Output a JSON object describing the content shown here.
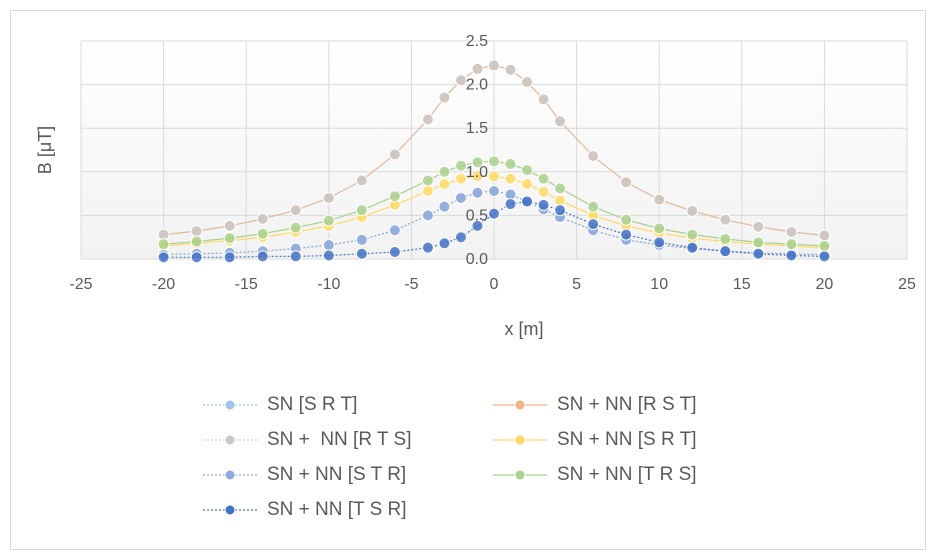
{
  "colors": {
    "gridline": "#d9d9d9",
    "plot_band_light": "#f2f2f2",
    "text": "#595959",
    "axis": "#bfbfbf"
  },
  "chart_data": {
    "type": "scatter",
    "title": "",
    "xlabel": "x [m]",
    "ylabel": "B [μT]",
    "xlim": [
      -25,
      25
    ],
    "ylim": [
      0,
      2.5
    ],
    "x_ticks": [
      "-25",
      "-20",
      "-15",
      "-10",
      "-5",
      "0",
      "5",
      "10",
      "15",
      "20",
      "25"
    ],
    "y_ticks": [
      "0.0",
      "0.5",
      "1.0",
      "1.5",
      "2.0",
      "2.5"
    ],
    "grid": true,
    "legend_position": "bottom",
    "series": [
      {
        "name": "SN [S R T]",
        "color": "#9dc3e6",
        "line_style": "dotted",
        "x": [
          -20,
          -18,
          -16,
          -14,
          -12,
          -10,
          -8,
          -6,
          -4,
          -3,
          -2,
          -1,
          0,
          1,
          2,
          3,
          4,
          6,
          8,
          10,
          12,
          14,
          16,
          18,
          20
        ],
        "y": [
          0.05,
          0.06,
          0.07,
          0.09,
          0.12,
          0.16,
          0.22,
          0.33,
          0.5,
          0.6,
          0.7,
          0.76,
          0.78,
          0.74,
          0.66,
          0.57,
          0.48,
          0.33,
          0.22,
          0.16,
          0.12,
          0.09,
          0.07,
          0.06,
          0.05
        ]
      },
      {
        "name": "SN + NN [R S T]",
        "color": "#f4b183",
        "line_style": "solid",
        "x": [
          -20,
          -18,
          -16,
          -14,
          -12,
          -10,
          -8,
          -6,
          -4,
          -3,
          -2,
          -1,
          0,
          1,
          2,
          3,
          4,
          6,
          8,
          10,
          12,
          14,
          16,
          18,
          20
        ],
        "y": [
          0.28,
          0.32,
          0.38,
          0.46,
          0.56,
          0.7,
          0.9,
          1.2,
          1.6,
          1.85,
          2.05,
          2.18,
          2.22,
          2.17,
          2.03,
          1.83,
          1.58,
          1.18,
          0.88,
          0.68,
          0.55,
          0.45,
          0.37,
          0.31,
          0.27
        ]
      },
      {
        "name": "SN +  NN [R T S]",
        "color": "#c9c9c9",
        "line_style": "dotted",
        "x": [
          -20,
          -18,
          -16,
          -14,
          -12,
          -10,
          -8,
          -6,
          -4,
          -3,
          -2,
          -1,
          0,
          1,
          2,
          3,
          4,
          6,
          8,
          10,
          12,
          14,
          16,
          18,
          20
        ],
        "y": [
          0.28,
          0.32,
          0.38,
          0.46,
          0.56,
          0.7,
          0.9,
          1.2,
          1.6,
          1.85,
          2.05,
          2.18,
          2.22,
          2.17,
          2.03,
          1.83,
          1.58,
          1.18,
          0.88,
          0.68,
          0.55,
          0.45,
          0.37,
          0.31,
          0.27
        ]
      },
      {
        "name": "SN + NN [S R T]",
        "color": "#ffd966",
        "line_style": "solid",
        "x": [
          -20,
          -18,
          -16,
          -14,
          -12,
          -10,
          -8,
          -6,
          -4,
          -3,
          -2,
          -1,
          0,
          1,
          2,
          3,
          4,
          6,
          8,
          10,
          12,
          14,
          16,
          18,
          20
        ],
        "y": [
          0.15,
          0.18,
          0.21,
          0.25,
          0.31,
          0.38,
          0.48,
          0.62,
          0.78,
          0.86,
          0.92,
          0.95,
          0.95,
          0.92,
          0.86,
          0.77,
          0.67,
          0.5,
          0.38,
          0.3,
          0.24,
          0.2,
          0.17,
          0.15,
          0.13
        ]
      },
      {
        "name": "SN + NN [S T R]",
        "color": "#8faadc",
        "line_style": "dotted",
        "x": [
          -20,
          -18,
          -16,
          -14,
          -12,
          -10,
          -8,
          -6,
          -4,
          -3,
          -2,
          -1,
          0,
          1,
          2,
          3,
          4,
          6,
          8,
          10,
          12,
          14,
          16,
          18,
          20
        ],
        "y": [
          0.05,
          0.06,
          0.07,
          0.09,
          0.12,
          0.16,
          0.22,
          0.33,
          0.5,
          0.6,
          0.7,
          0.76,
          0.78,
          0.74,
          0.66,
          0.57,
          0.48,
          0.33,
          0.22,
          0.16,
          0.12,
          0.09,
          0.07,
          0.06,
          0.05
        ]
      },
      {
        "name": "SN + NN [T R S]",
        "color": "#a9d18e",
        "line_style": "solid",
        "x": [
          -20,
          -18,
          -16,
          -14,
          -12,
          -10,
          -8,
          -6,
          -4,
          -3,
          -2,
          -1,
          0,
          1,
          2,
          3,
          4,
          6,
          8,
          10,
          12,
          14,
          16,
          18,
          20
        ],
        "y": [
          0.17,
          0.2,
          0.24,
          0.29,
          0.36,
          0.44,
          0.56,
          0.72,
          0.9,
          1.0,
          1.07,
          1.11,
          1.12,
          1.09,
          1.02,
          0.92,
          0.81,
          0.6,
          0.45,
          0.35,
          0.28,
          0.23,
          0.19,
          0.17,
          0.15
        ]
      },
      {
        "name": "SN + NN [T S R]",
        "color": "#4472c4",
        "line_style": "dotted",
        "x": [
          -20,
          -18,
          -16,
          -14,
          -12,
          -10,
          -8,
          -6,
          -4,
          -3,
          -2,
          -1,
          0,
          1,
          2,
          3,
          4,
          6,
          8,
          10,
          12,
          14,
          16,
          18,
          20
        ],
        "y": [
          0.02,
          0.02,
          0.02,
          0.03,
          0.03,
          0.04,
          0.06,
          0.08,
          0.13,
          0.18,
          0.25,
          0.38,
          0.52,
          0.63,
          0.66,
          0.62,
          0.56,
          0.4,
          0.28,
          0.19,
          0.13,
          0.09,
          0.06,
          0.04,
          0.03
        ]
      }
    ]
  }
}
